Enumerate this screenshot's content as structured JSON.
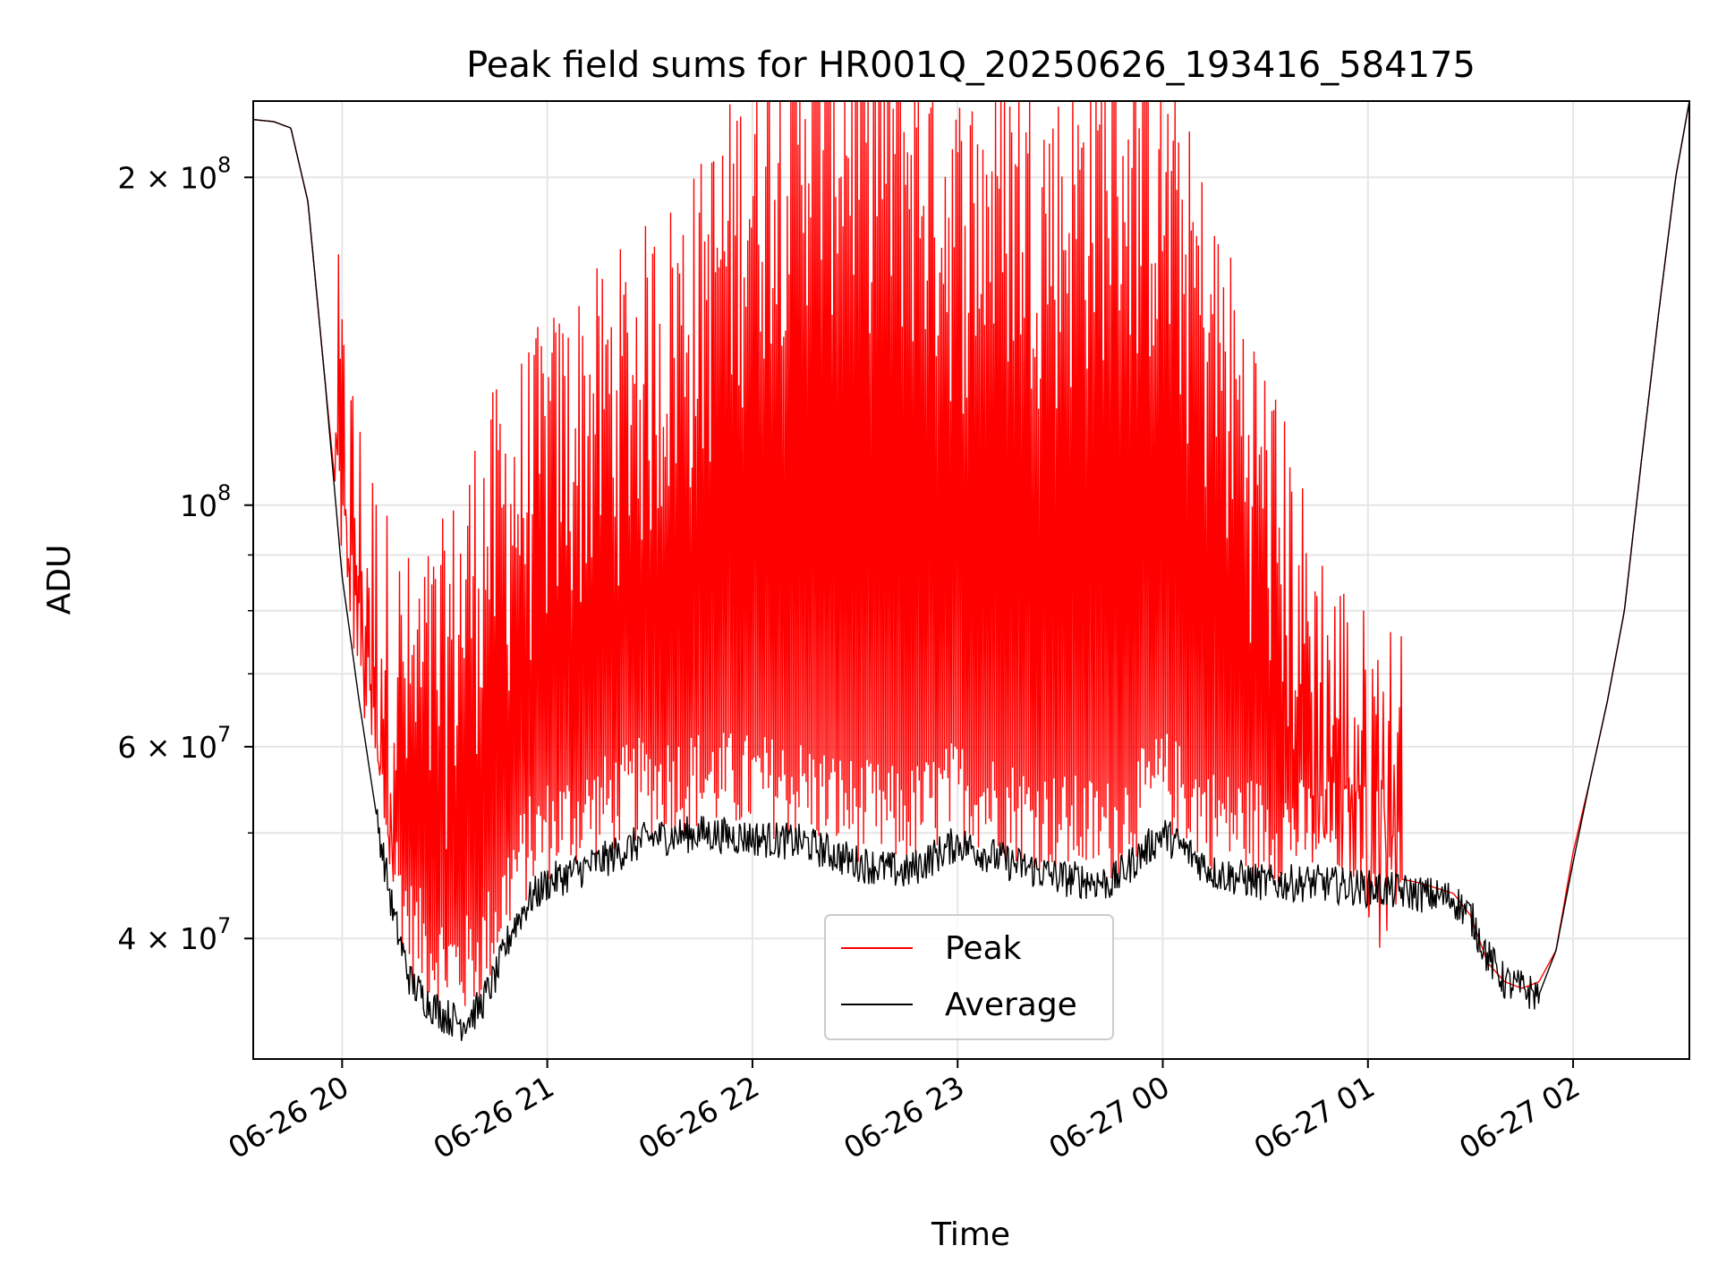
{
  "chart_data": {
    "type": "line",
    "title": "Peak field sums for HR001Q_20250626_193416_584175",
    "xlabel": "Time",
    "ylabel": "ADU",
    "yscale": "log",
    "ylim": [
      31000000,
      235000000
    ],
    "xlim": [
      "2025-06-26 19:34",
      "2025-06-27 02:34"
    ],
    "grid": true,
    "legend_position": "lower-center",
    "x_ticks": [
      {
        "value": "2025-06-26 20:00",
        "label": "06-26 20"
      },
      {
        "value": "2025-06-26 21:00",
        "label": "06-26 21"
      },
      {
        "value": "2025-06-26 22:00",
        "label": "06-26 22"
      },
      {
        "value": "2025-06-26 23:00",
        "label": "06-26 23"
      },
      {
        "value": "2025-06-27 00:00",
        "label": "06-27 00"
      },
      {
        "value": "2025-06-27 01:00",
        "label": "06-27 01"
      },
      {
        "value": "2025-06-27 02:00",
        "label": "06-27 02"
      }
    ],
    "y_ticks": [
      {
        "value": 200000000,
        "label_base": "2 × 10",
        "label_exp": "8"
      },
      {
        "value": 100000000,
        "label_base": "10",
        "label_exp": "8"
      },
      {
        "value": 60000000,
        "label_base": "6 × 10",
        "label_exp": "7"
      },
      {
        "value": 40000000,
        "label_base": "4 × 10",
        "label_exp": "7"
      }
    ],
    "y_minor_ticks": [
      30000000,
      50000000,
      70000000,
      80000000,
      90000000
    ],
    "series": [
      {
        "name": "Peak",
        "color": "#ff0000",
        "x": [
          "2025-06-26 19:34",
          "2025-06-26 19:40",
          "2025-06-26 19:45",
          "2025-06-26 19:50",
          "2025-06-26 19:55",
          "2025-06-26 20:00",
          "2025-06-26 20:05",
          "2025-06-26 20:10",
          "2025-06-26 20:15",
          "2025-06-26 20:20",
          "2025-06-26 20:25",
          "2025-06-26 20:30",
          "2025-06-26 20:35",
          "2025-06-26 20:40",
          "2025-06-26 20:50",
          "2025-06-26 21:00",
          "2025-06-26 21:15",
          "2025-06-26 21:30",
          "2025-06-26 21:45",
          "2025-06-26 22:00",
          "2025-06-26 22:15",
          "2025-06-26 22:30",
          "2025-06-26 22:45",
          "2025-06-26 23:00",
          "2025-06-26 23:15",
          "2025-06-26 23:30",
          "2025-06-26 23:45",
          "2025-06-27 00:00",
          "2025-06-27 00:15",
          "2025-06-27 00:30",
          "2025-06-27 00:45",
          "2025-06-27 01:00",
          "2025-06-27 01:15",
          "2025-06-27 01:25",
          "2025-06-27 01:30",
          "2025-06-27 01:35",
          "2025-06-27 01:40",
          "2025-06-27 01:45",
          "2025-06-27 01:50",
          "2025-06-27 01:55",
          "2025-06-27 02:00",
          "2025-06-27 02:05",
          "2025-06-27 02:10",
          "2025-06-27 02:15",
          "2025-06-27 02:20",
          "2025-06-27 02:25",
          "2025-06-27 02:30",
          "2025-06-27 02:34"
        ],
        "y": [
          226000000,
          225000000,
          222000000,
          190000000,
          130000000,
          90000000,
          72000000,
          62000000,
          55000000,
          52000000,
          53000000,
          56000000,
          62000000,
          70000000,
          78000000,
          86000000,
          95000000,
          105000000,
          120000000,
          150000000,
          175000000,
          170000000,
          160000000,
          140000000,
          150000000,
          140000000,
          160000000,
          150000000,
          110000000,
          80000000,
          55000000,
          46000000,
          45000000,
          44000000,
          42000000,
          38000000,
          36500000,
          36000000,
          36500000,
          39000000,
          48000000,
          56000000,
          66000000,
          80000000,
          110000000,
          150000000,
          200000000,
          235000000
        ],
        "noisy_range": [
          "2025-06-26 19:58",
          "2025-06-27 01:10"
        ],
        "band_max": [
          235000000,
          235000000
        ]
      },
      {
        "name": "Average",
        "color": "#000000",
        "x": [
          "2025-06-26 19:34",
          "2025-06-26 19:40",
          "2025-06-26 19:45",
          "2025-06-26 19:50",
          "2025-06-26 19:55",
          "2025-06-26 20:00",
          "2025-06-26 20:05",
          "2025-06-26 20:10",
          "2025-06-26 20:15",
          "2025-06-26 20:20",
          "2025-06-26 20:25",
          "2025-06-26 20:30",
          "2025-06-26 20:35",
          "2025-06-26 20:40",
          "2025-06-26 20:45",
          "2025-06-26 20:50",
          "2025-06-26 20:55",
          "2025-06-26 21:00",
          "2025-06-26 21:15",
          "2025-06-26 21:30",
          "2025-06-26 21:45",
          "2025-06-26 22:00",
          "2025-06-26 22:15",
          "2025-06-26 22:30",
          "2025-06-26 22:45",
          "2025-06-26 23:00",
          "2025-06-26 23:15",
          "2025-06-26 23:30",
          "2025-06-26 23:45",
          "2025-06-27 00:00",
          "2025-06-27 00:15",
          "2025-06-27 00:30",
          "2025-06-27 00:45",
          "2025-06-27 01:00",
          "2025-06-27 01:15",
          "2025-06-27 01:25",
          "2025-06-27 01:30",
          "2025-06-27 01:35",
          "2025-06-27 01:40",
          "2025-06-27 01:45",
          "2025-06-27 01:50",
          "2025-06-27 01:55",
          "2025-06-27 02:00",
          "2025-06-27 02:05",
          "2025-06-27 02:10",
          "2025-06-27 02:15",
          "2025-06-27 02:20",
          "2025-06-27 02:25",
          "2025-06-27 02:30",
          "2025-06-27 02:34"
        ],
        "y": [
          226000000,
          225000000,
          222000000,
          190000000,
          130000000,
          86000000,
          66000000,
          52000000,
          42000000,
          36500000,
          35000000,
          34000000,
          33500000,
          34500000,
          37000000,
          41000000,
          43500000,
          45000000,
          47000000,
          49500000,
          50000000,
          49500000,
          49000000,
          47000000,
          46000000,
          49000000,
          47000000,
          45500000,
          45000000,
          50000000,
          46000000,
          45000000,
          45000000,
          44500000,
          44000000,
          43500000,
          42000000,
          38500000,
          36500000,
          36000000,
          35500000,
          39000000,
          47000000,
          56000000,
          66000000,
          80000000,
          110000000,
          150000000,
          200000000,
          235000000
        ]
      }
    ]
  }
}
